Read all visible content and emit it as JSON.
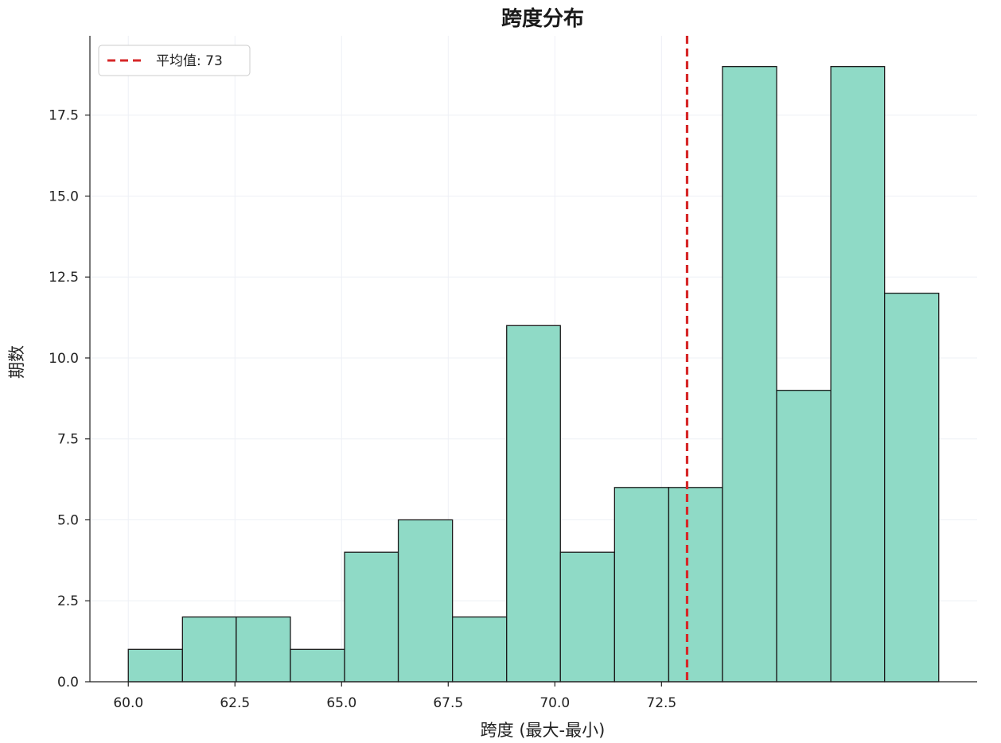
{
  "chart_data": {
    "type": "bar",
    "title": "跨度分布",
    "xlabel": "跨度 (最大-最小)",
    "ylabel": "期数",
    "bin_edges": [
      60.0,
      61.27,
      62.53,
      63.8,
      65.07,
      66.33,
      67.6,
      68.87,
      70.13,
      71.4,
      72.67,
      73.93,
      75.2,
      76.47,
      77.73,
      79.0
    ],
    "values": [
      1,
      2,
      2,
      1,
      4,
      5,
      2,
      11,
      4,
      6,
      6,
      19,
      9,
      19,
      12
    ],
    "xlim": [
      59.1,
      79.9
    ],
    "ylim": [
      0,
      19.95
    ],
    "xticks": [
      60.0,
      62.5,
      65.0,
      67.5,
      70.0,
      72.5
    ],
    "xtick_labels": [
      "60.0",
      "62.5",
      "65.0",
      "67.5",
      "70.0",
      "72.5"
    ],
    "yticks": [
      0.0,
      2.5,
      5.0,
      7.5,
      10.0,
      12.5,
      15.0,
      17.5
    ],
    "ytick_labels": [
      "0.0",
      "2.5",
      "5.0",
      "7.5",
      "10.0",
      "12.5",
      "15.0",
      "17.5"
    ],
    "mean_line": {
      "value": 73.1,
      "label": "平均值: 73",
      "style": "dashed",
      "color": "#d62728"
    },
    "bar_color": "#8fdac6",
    "bar_edge_color": "#1a1a1a",
    "grid": true,
    "legend_position": "top-left"
  }
}
